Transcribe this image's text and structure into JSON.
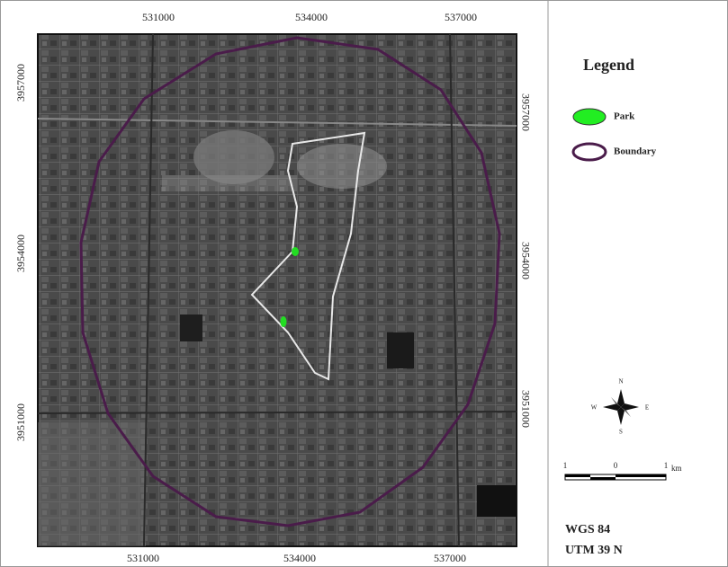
{
  "map": {
    "frame": {
      "top_labels": [
        "531000",
        "534000",
        "537000"
      ],
      "bottom_labels": [
        "531000",
        "534000",
        "537000"
      ],
      "left_labels": [
        "3957000",
        "3954000",
        "3951000"
      ],
      "right_labels": [
        "3957000",
        "3954000",
        "3951000"
      ]
    },
    "legend": {
      "title": "Legend",
      "items": [
        "Park",
        "Boundary"
      ]
    },
    "north_arrow": {
      "n": "N",
      "s": "S",
      "e": "E",
      "w": "W"
    },
    "scale_bar": {
      "labels": [
        "1",
        "0",
        "1"
      ],
      "unit": "km"
    },
    "projection": [
      "WGS 84",
      "UTM 39 N"
    ]
  }
}
